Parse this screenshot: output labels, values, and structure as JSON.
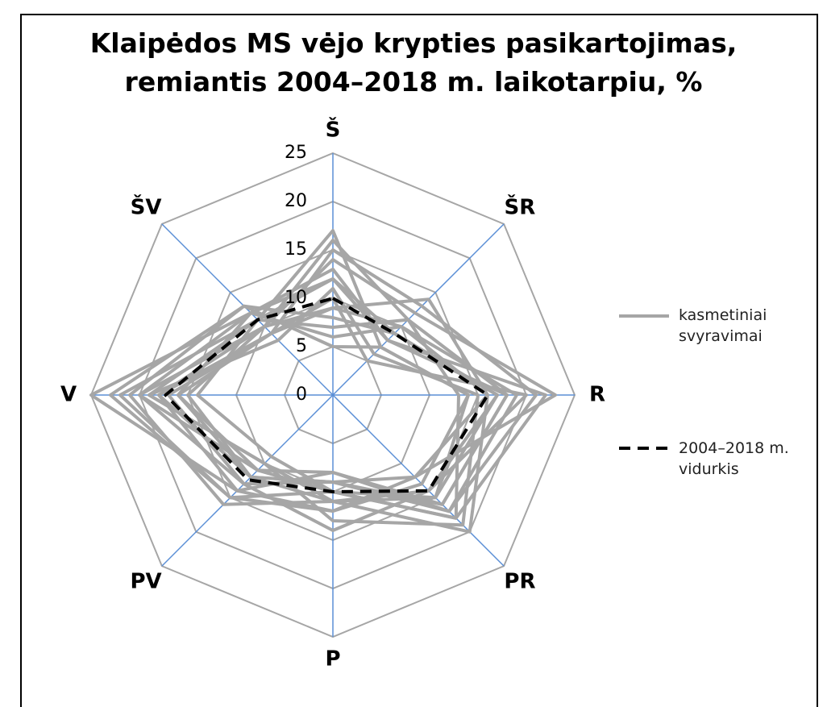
{
  "chart_data": {
    "type": "radar",
    "title": "Klaipėdos MS vėjo krypties pasikartojimas, remiantis 2004–2018 m. laikotarpiu, %",
    "categories": [
      "Š",
      "ŠR",
      "R",
      "PR",
      "P",
      "PV",
      "V",
      "ŠV"
    ],
    "ylim": [
      0,
      25
    ],
    "yticks": [
      0,
      5,
      10,
      15,
      20,
      25
    ],
    "grid": true,
    "series": [
      {
        "name": "kasmetiniai svyravimai",
        "color": "#a6a6a6",
        "dash": false,
        "values": [
          [
            16,
            11,
            18,
            16,
            9,
            13,
            20,
            10
          ],
          [
            12,
            8,
            22,
            18,
            10,
            11,
            16,
            12
          ],
          [
            9,
            14,
            16,
            20,
            11,
            12,
            18,
            9
          ],
          [
            17,
            7,
            14,
            13,
            12,
            15,
            22,
            11
          ],
          [
            6,
            10,
            19,
            17,
            8,
            14,
            25,
            12
          ],
          [
            11,
            6,
            15,
            19,
            13,
            10,
            19,
            8
          ],
          [
            14,
            12,
            23,
            12,
            9,
            12,
            15,
            10
          ],
          [
            8,
            9,
            17,
            15,
            11,
            16,
            21,
            13
          ],
          [
            10,
            5,
            20,
            14,
            14,
            13,
            17,
            9
          ],
          [
            7,
            11,
            13,
            18,
            10,
            9,
            14,
            11
          ],
          [
            13,
            8,
            18,
            16,
            8,
            11,
            20,
            12
          ],
          [
            9,
            10,
            16,
            12,
            12,
            14,
            18,
            10
          ],
          [
            15,
            13,
            21,
            17,
            9,
            12,
            16,
            9
          ],
          [
            5,
            7,
            14,
            15,
            10,
            15,
            23,
            13
          ],
          [
            12,
            9,
            17,
            14,
            11,
            10,
            19,
            11
          ]
        ]
      },
      {
        "name": "2004–2018 m. vidurkis",
        "color": "#000000",
        "dash": true,
        "values": [
          10,
          9,
          16,
          14,
          10,
          12.4,
          17.3,
          11
        ]
      }
    ]
  }
}
